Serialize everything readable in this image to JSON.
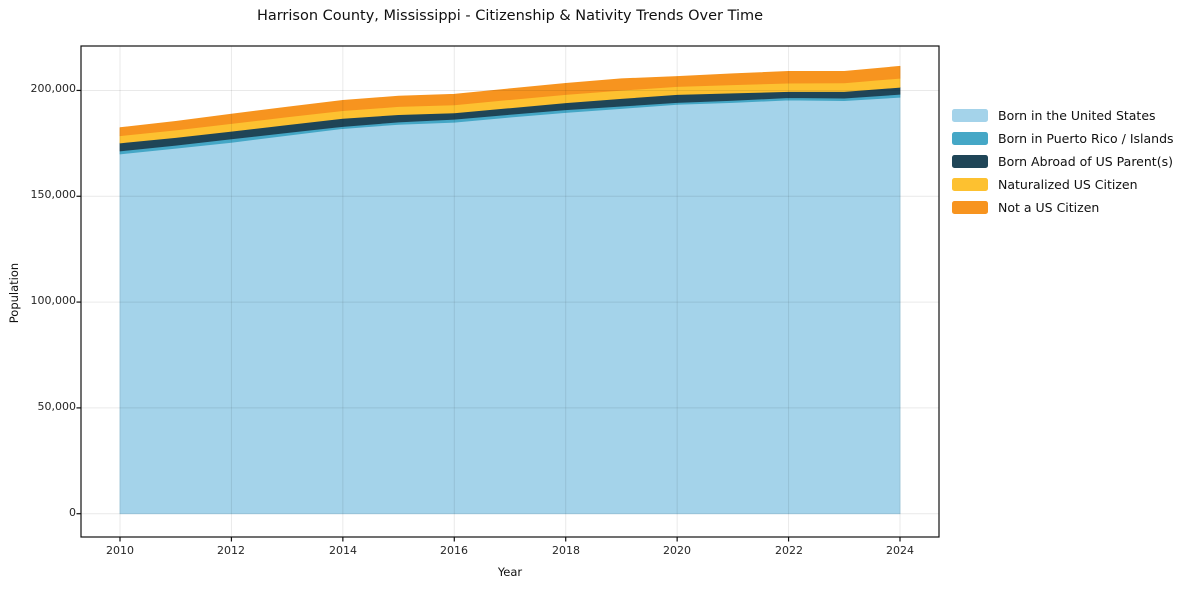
{
  "page": {
    "title": "Harrison County, Mississippi - Citizenship & Nativity Trends Over Time"
  },
  "chart_data": {
    "type": "area",
    "stacked": true,
    "title": "Harrison County, Mississippi - Citizenship & Nativity Trends Over Time",
    "xlabel": "Year",
    "ylabel": "Population",
    "x": [
      2010,
      2011,
      2012,
      2013,
      2014,
      2015,
      2016,
      2017,
      2018,
      2019,
      2020,
      2021,
      2022,
      2023,
      2024
    ],
    "series": [
      {
        "name": "Born in the United States",
        "color": "#a4d3ea",
        "values": [
          170000,
          172700,
          175500,
          178800,
          182000,
          184000,
          185000,
          187400,
          189600,
          191500,
          193400,
          194300,
          195500,
          195200,
          196800
        ]
      },
      {
        "name": "Born in Puerto Rico / Islands",
        "color": "#45a7c6",
        "values": [
          1400,
          1400,
          1600,
          1300,
          1000,
          1100,
          1400,
          1300,
          1300,
          1100,
          900,
          1000,
          1100,
          1200,
          1400
        ]
      },
      {
        "name": "Born Abroad of US Parent(s)",
        "color": "#1f4557",
        "values": [
          3800,
          3700,
          3600,
          3700,
          3800,
          3500,
          3000,
          3100,
          3300,
          3600,
          3800,
          3500,
          2900,
          3100,
          3300
        ]
      },
      {
        "name": "Naturalized US Citizen",
        "color": "#fdc130",
        "values": [
          3400,
          3500,
          3700,
          3700,
          3700,
          3800,
          3800,
          3900,
          3900,
          3900,
          3800,
          3900,
          4000,
          4100,
          4300
        ]
      },
      {
        "name": "Not a US Citizen",
        "color": "#f7941f",
        "values": [
          3800,
          4100,
          4400,
          4600,
          4800,
          4900,
          5000,
          5100,
          5200,
          5400,
          4700,
          5200,
          5500,
          5400,
          5600
        ]
      }
    ],
    "xlim": [
      2009.3,
      2024.7
    ],
    "ylim": [
      -11000,
      221000
    ],
    "xticks": [
      2010,
      2012,
      2014,
      2016,
      2018,
      2020,
      2022,
      2024
    ],
    "xtick_labels": [
      "2010",
      "2012",
      "2014",
      "2016",
      "2018",
      "2020",
      "2022",
      "2024"
    ],
    "yticks": [
      0,
      50000,
      100000,
      150000,
      200000
    ],
    "ytick_labels": [
      "0",
      "50,000",
      "100,000",
      "150,000",
      "200,000"
    ],
    "grid": true,
    "legend_position": "right"
  }
}
